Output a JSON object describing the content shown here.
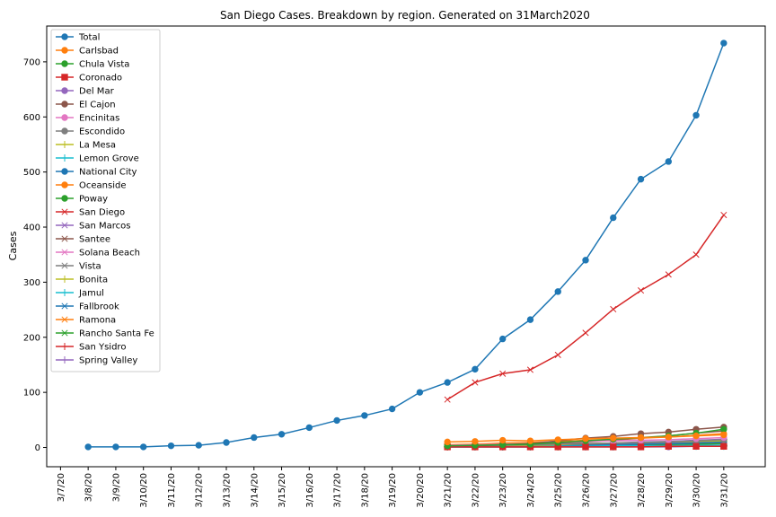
{
  "chart_data": {
    "type": "line",
    "title": "San Diego Cases. Breakdown by region. Generated on 31March2020",
    "xlabel": "",
    "ylabel": "Cases",
    "x": [
      "3/7/20",
      "3/8/20",
      "3/9/20",
      "3/10/20",
      "3/11/20",
      "3/12/20",
      "3/13/20",
      "3/14/20",
      "3/15/20",
      "3/16/20",
      "3/17/20",
      "3/18/20",
      "3/19/20",
      "3/20/20",
      "3/21/20",
      "3/22/20",
      "3/23/20",
      "3/24/20",
      "3/25/20",
      "3/26/20",
      "3/27/20",
      "3/28/20",
      "3/29/20",
      "3/30/20",
      "3/31/20"
    ],
    "xlim": [
      "3/7/20",
      "4/1/20"
    ],
    "ylim": [
      -35,
      765
    ],
    "yticks": [
      0,
      100,
      200,
      300,
      400,
      500,
      600,
      700
    ],
    "grid": false,
    "legend_position": "top-left",
    "series": [
      {
        "name": "Total",
        "color": "#1f77b4",
        "marker": "o",
        "values": [
          null,
          1,
          1,
          1,
          3,
          4,
          9,
          18,
          24,
          36,
          49,
          58,
          70,
          100,
          118,
          142,
          197,
          232,
          283,
          340,
          417,
          487,
          519,
          603,
          734
        ]
      },
      {
        "name": "Carlsbad",
        "color": "#ff7f0e",
        "marker": "o",
        "values": [
          null,
          null,
          null,
          null,
          null,
          null,
          null,
          null,
          null,
          null,
          null,
          null,
          null,
          null,
          10,
          11,
          13,
          12,
          14,
          16,
          17,
          18,
          19,
          21,
          23
        ]
      },
      {
        "name": "Chula Vista",
        "color": "#2ca02c",
        "marker": "o",
        "values": [
          null,
          null,
          null,
          null,
          null,
          null,
          null,
          null,
          null,
          null,
          null,
          null,
          null,
          null,
          3,
          4,
          5,
          6,
          9,
          12,
          15,
          18,
          21,
          26,
          33
        ]
      },
      {
        "name": "Coronado",
        "color": "#d62728",
        "marker": "s",
        "values": [
          null,
          null,
          null,
          null,
          null,
          null,
          null,
          null,
          null,
          null,
          null,
          null,
          null,
          null,
          1,
          1,
          1,
          1,
          1,
          1,
          1,
          1,
          2,
          2,
          2
        ]
      },
      {
        "name": "Del Mar",
        "color": "#9467bd",
        "marker": "o",
        "values": [
          null,
          null,
          null,
          null,
          null,
          null,
          null,
          null,
          null,
          null,
          null,
          null,
          null,
          null,
          1,
          1,
          1,
          1,
          1,
          1,
          1,
          1,
          1,
          2,
          2
        ]
      },
      {
        "name": "El Cajon",
        "color": "#8c564b",
        "marker": "o",
        "values": [
          null,
          null,
          null,
          null,
          null,
          null,
          null,
          null,
          null,
          null,
          null,
          null,
          null,
          null,
          2,
          3,
          5,
          7,
          12,
          17,
          20,
          25,
          28,
          33,
          37
        ]
      },
      {
        "name": "Encinitas",
        "color": "#e377c2",
        "marker": "o",
        "values": [
          null,
          null,
          null,
          null,
          null,
          null,
          null,
          null,
          null,
          null,
          null,
          null,
          null,
          null,
          4,
          5,
          6,
          7,
          9,
          11,
          12,
          13,
          14,
          16,
          18
        ]
      },
      {
        "name": "Escondido",
        "color": "#7f7f7f",
        "marker": "o",
        "values": [
          null,
          null,
          null,
          null,
          null,
          null,
          null,
          null,
          null,
          null,
          null,
          null,
          null,
          null,
          3,
          3,
          4,
          5,
          6,
          7,
          8,
          9,
          10,
          12,
          14
        ]
      },
      {
        "name": "La Mesa",
        "color": "#bcbd22",
        "marker": "+",
        "values": [
          null,
          null,
          null,
          null,
          null,
          null,
          null,
          null,
          null,
          null,
          null,
          null,
          null,
          null,
          1,
          2,
          3,
          4,
          5,
          7,
          8,
          9,
          10,
          11,
          12
        ]
      },
      {
        "name": "Lemon Grove",
        "color": "#17becf",
        "marker": "+",
        "values": [
          null,
          null,
          null,
          null,
          null,
          null,
          null,
          null,
          null,
          null,
          null,
          null,
          null,
          null,
          1,
          1,
          1,
          1,
          2,
          2,
          3,
          3,
          3,
          4,
          4
        ]
      },
      {
        "name": "National City",
        "color": "#1f77b4",
        "marker": "o",
        "values": [
          null,
          null,
          null,
          null,
          null,
          null,
          null,
          null,
          null,
          null,
          null,
          null,
          null,
          null,
          1,
          1,
          2,
          2,
          3,
          4,
          5,
          6,
          7,
          8,
          10
        ]
      },
      {
        "name": "Oceanside",
        "color": "#ff7f0e",
        "marker": "o",
        "values": [
          null,
          null,
          null,
          null,
          null,
          null,
          null,
          null,
          null,
          null,
          null,
          null,
          null,
          null,
          5,
          6,
          8,
          9,
          11,
          13,
          15,
          17,
          19,
          22,
          25
        ]
      },
      {
        "name": "Poway",
        "color": "#2ca02c",
        "marker": "o",
        "values": [
          null,
          null,
          null,
          null,
          null,
          null,
          null,
          null,
          null,
          null,
          null,
          null,
          null,
          null,
          1,
          2,
          2,
          3,
          3,
          4,
          4,
          5,
          5,
          6,
          7
        ]
      },
      {
        "name": "San Diego",
        "color": "#d62728",
        "marker": "x",
        "values": [
          null,
          null,
          null,
          null,
          null,
          null,
          null,
          null,
          null,
          null,
          null,
          null,
          null,
          null,
          87,
          118,
          134,
          141,
          168,
          208,
          251,
          285,
          314,
          350,
          422
        ]
      },
      {
        "name": "San Marcos",
        "color": "#9467bd",
        "marker": "x",
        "values": [
          null,
          null,
          null,
          null,
          null,
          null,
          null,
          null,
          null,
          null,
          null,
          null,
          null,
          null,
          1,
          1,
          2,
          2,
          3,
          4,
          5,
          6,
          7,
          8,
          9
        ]
      },
      {
        "name": "Santee",
        "color": "#8c564b",
        "marker": "x",
        "values": [
          null,
          null,
          null,
          null,
          null,
          null,
          null,
          null,
          null,
          null,
          null,
          null,
          null,
          null,
          2,
          3,
          4,
          5,
          7,
          10,
          13,
          17,
          21,
          26,
          30
        ]
      },
      {
        "name": "Solana Beach",
        "color": "#e377c2",
        "marker": "x",
        "values": [
          null,
          null,
          null,
          null,
          null,
          null,
          null,
          null,
          null,
          null,
          null,
          null,
          null,
          null,
          1,
          1,
          1,
          1,
          2,
          2,
          2,
          3,
          3,
          3,
          4
        ]
      },
      {
        "name": "Vista",
        "color": "#7f7f7f",
        "marker": "x",
        "values": [
          null,
          null,
          null,
          null,
          null,
          null,
          null,
          null,
          null,
          null,
          null,
          null,
          null,
          null,
          2,
          2,
          3,
          4,
          5,
          6,
          7,
          8,
          9,
          10,
          12
        ]
      },
      {
        "name": "Bonita",
        "color": "#bcbd22",
        "marker": "+",
        "values": [
          null,
          null,
          null,
          null,
          null,
          null,
          null,
          null,
          null,
          null,
          null,
          null,
          null,
          null,
          1,
          1,
          1,
          1,
          1,
          2,
          2,
          2,
          2,
          3,
          3
        ]
      },
      {
        "name": "Jamul",
        "color": "#17becf",
        "marker": "+",
        "values": [
          null,
          null,
          null,
          null,
          null,
          null,
          null,
          null,
          null,
          null,
          null,
          null,
          null,
          null,
          1,
          1,
          1,
          1,
          1,
          1,
          1,
          2,
          2,
          2,
          2
        ]
      },
      {
        "name": "Fallbrook",
        "color": "#1f77b4",
        "marker": "x",
        "values": [
          null,
          null,
          null,
          null,
          null,
          null,
          null,
          null,
          null,
          null,
          null,
          null,
          null,
          null,
          1,
          1,
          1,
          2,
          2,
          3,
          3,
          4,
          5,
          6,
          7
        ]
      },
      {
        "name": "Ramona",
        "color": "#ff7f0e",
        "marker": "x",
        "values": [
          null,
          null,
          null,
          null,
          null,
          null,
          null,
          null,
          null,
          null,
          null,
          null,
          null,
          null,
          1,
          1,
          1,
          1,
          1,
          2,
          2,
          2,
          2,
          3,
          3
        ]
      },
      {
        "name": "Rancho Santa Fe",
        "color": "#2ca02c",
        "marker": "x",
        "values": [
          null,
          null,
          null,
          null,
          null,
          null,
          null,
          null,
          null,
          null,
          null,
          null,
          null,
          null,
          1,
          1,
          2,
          2,
          3,
          4,
          5,
          6,
          7,
          8,
          9
        ]
      },
      {
        "name": "San Ysidro",
        "color": "#d62728",
        "marker": "+",
        "values": [
          null,
          null,
          null,
          null,
          null,
          null,
          null,
          null,
          null,
          null,
          null,
          null,
          null,
          null,
          1,
          1,
          1,
          1,
          2,
          2,
          2,
          3,
          3,
          3,
          4
        ]
      },
      {
        "name": "Spring Valley",
        "color": "#9467bd",
        "marker": "+",
        "values": [
          null,
          null,
          null,
          null,
          null,
          null,
          null,
          null,
          null,
          null,
          null,
          null,
          null,
          null,
          1,
          2,
          3,
          4,
          5,
          7,
          8,
          10,
          11,
          13,
          15
        ]
      }
    ]
  }
}
